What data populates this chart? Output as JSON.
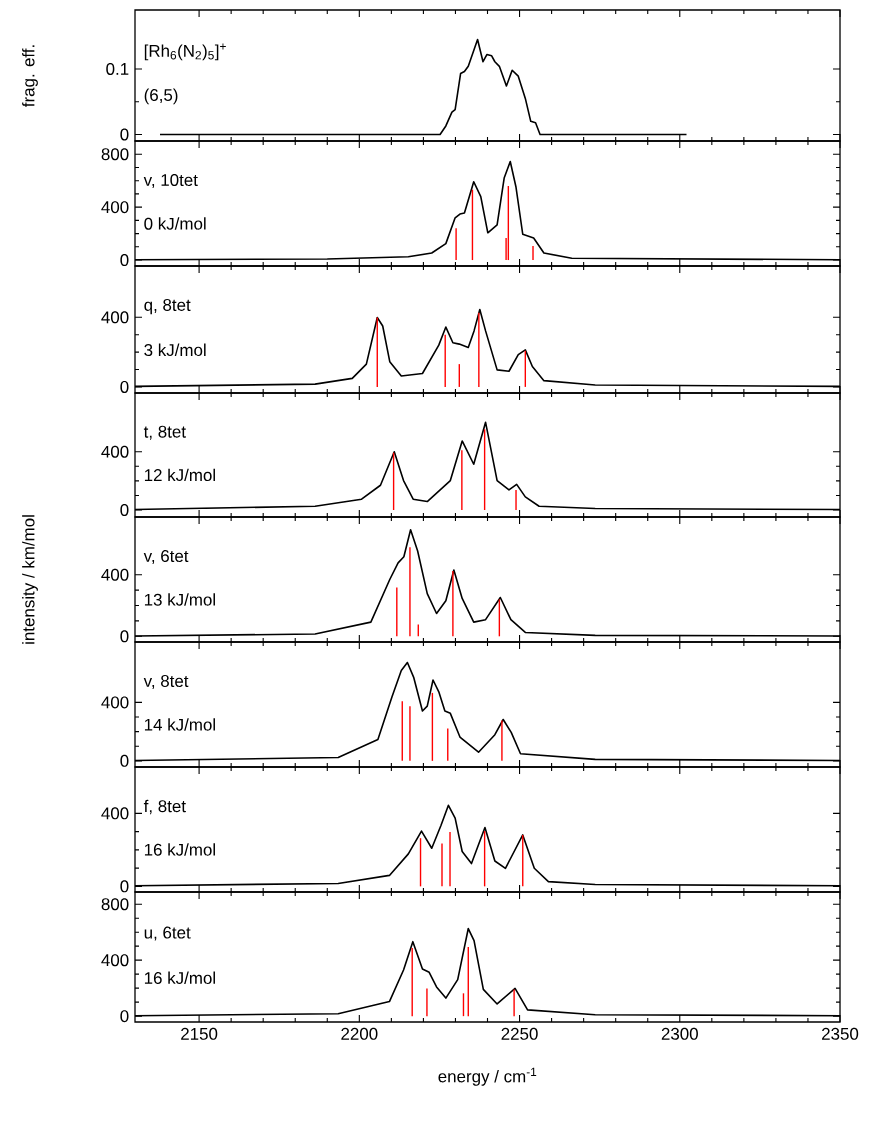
{
  "chart_data": [
    {
      "type": "line",
      "ylabel": "frag. eff.",
      "annotations": [
        "[Rh$_{6}$(N$_{2}$)$_{5}$]$^{+}$",
        "(6,5)"
      ],
      "xlim": [
        2130,
        2350
      ],
      "xticks": [
        2150,
        2200,
        2250,
        2300,
        2350
      ],
      "ylim": [
        -0.01,
        0.19
      ],
      "yticks": [
        0,
        0.1
      ],
      "tick_labels": "y",
      "series": [
        {
          "type": "line",
          "color": "#000000",
          "x": [
            2137.8,
            2222.6,
            2225.2,
            2227,
            2228.9,
            2229.9,
            2231.6,
            2232.8,
            2234,
            2236.9,
            2238.6,
            2239.8,
            2241.3,
            2242.3,
            2243.7,
            2245.9,
            2247.7,
            2249.6,
            2251.8,
            2253.5,
            2255,
            2256.4,
            2302.1
          ],
          "values": [
            0,
            0,
            0,
            0.013,
            0.034,
            0.038,
            0.093,
            0.096,
            0.104,
            0.145,
            0.111,
            0.122,
            0.12,
            0.111,
            0.104,
            0.074,
            0.098,
            0.089,
            0.055,
            0.02,
            0.018,
            0,
            0
          ]
        }
      ]
    },
    {
      "type": "line",
      "annotations": [
        "v, 10tet",
        "0 kJ/mol"
      ],
      "xlim": [
        2130,
        2350
      ],
      "xticks": [
        2150,
        2200,
        2250,
        2300,
        2350
      ],
      "ylim": [
        -45,
        900
      ],
      "yticks": [
        0,
        400,
        800
      ],
      "tick_labels": "y",
      "series": [
        {
          "type": "line",
          "color": "#000000",
          "x": [
            2130,
            2190,
            2215.3,
            2222.6,
            2227,
            2229.9,
            2231.4,
            2232.8,
            2235.7,
            2237.9,
            2240.1,
            2243,
            2245.2,
            2247.1,
            2248.9,
            2251,
            2254.4,
            2257.6,
            2266.3,
            2350
          ],
          "values": [
            2,
            8,
            25,
            53,
            124,
            319,
            348,
            355,
            592,
            479,
            206,
            266,
            620,
            745,
            550,
            195,
            167,
            53,
            14,
            2
          ]
        },
        {
          "type": "bar",
          "color": "#ff0000",
          "x": [
            2230.2,
            2235.3,
            2245.8,
            2246.5,
            2254.2
          ],
          "values": [
            241,
            532,
            167,
            560,
            106
          ]
        }
      ]
    },
    {
      "type": "line",
      "annotations": [
        "q, 8tet",
        "3 kJ/mol"
      ],
      "xlim": [
        2130,
        2350
      ],
      "xticks": [
        2150,
        2200,
        2250,
        2300,
        2350
      ],
      "ylim": [
        -35,
        695
      ],
      "yticks": [
        0,
        400
      ],
      "tick_labels": "y",
      "series": [
        {
          "type": "line",
          "color": "#000000",
          "x": [
            2130,
            2186.2,
            2197.8,
            2202.2,
            2205.6,
            2207.3,
            2209.5,
            2213.1,
            2219.7,
            2224.8,
            2227,
            2229.2,
            2231.2,
            2234,
            2235.8,
            2237.6,
            2239.4,
            2243,
            2246.7,
            2249.6,
            2251.8,
            2254,
            2257.6,
            2273.6,
            2350
          ],
          "values": [
            3,
            16,
            49,
            131,
            399,
            350,
            145,
            63,
            77,
            240,
            344,
            254,
            246,
            227,
            322,
            445,
            322,
            98,
            90,
            186,
            213,
            117,
            36,
            11,
            3
          ]
        },
        {
          "type": "bar",
          "color": "#ff0000",
          "x": [
            2205.6,
            2226.8,
            2231.2,
            2237.3,
            2251.8
          ],
          "values": [
            399,
            300,
            131,
            426,
            208
          ]
        }
      ]
    },
    {
      "type": "line",
      "annotations": [
        "t, 8tet",
        "12 kJ/mol"
      ],
      "xlim": [
        2130,
        2350
      ],
      "xticks": [
        2150,
        2200,
        2250,
        2300,
        2350
      ],
      "ylim": [
        -48,
        803
      ],
      "yticks": [
        0,
        400
      ],
      "tick_labels": "y",
      "series": [
        {
          "type": "line",
          "color": "#000000",
          "x": [
            2130,
            2186.2,
            2200.7,
            2206.6,
            2210.9,
            2213.8,
            2216.8,
            2221.2,
            2228.4,
            2232.1,
            2235.7,
            2239.4,
            2243,
            2246.7,
            2249.1,
            2251.8,
            2256.1,
            2273.6,
            2350
          ],
          "values": [
            3,
            26,
            74,
            170,
            400,
            202,
            74,
            58,
            202,
            474,
            314,
            602,
            202,
            138,
            176,
            90,
            26,
            10,
            3
          ]
        },
        {
          "type": "bar",
          "color": "#ff0000",
          "x": [
            2210.7,
            2231.4,
            2232,
            2239.1,
            2248.9
          ],
          "values": [
            394,
            null,
            410,
            554,
            138
          ]
        }
      ]
    },
    {
      "type": "line",
      "ylabel": "intensity / km/mol",
      "annotations": [
        "v, 6tet",
        "13 kJ/mol"
      ],
      "xlim": [
        2130,
        2350
      ],
      "xticks": [
        2150,
        2200,
        2250,
        2300,
        2350
      ],
      "ylim": [
        -37,
        775
      ],
      "yticks": [
        0,
        400
      ],
      "tick_labels": "y",
      "series": [
        {
          "type": "line",
          "color": "#000000",
          "x": [
            2130,
            2186.2,
            2203.6,
            2209.5,
            2212.1,
            2213.9,
            2216,
            2218.2,
            2221.2,
            2224.1,
            2227,
            2229.5,
            2232.1,
            2235.7,
            2239.4,
            2244,
            2247.3,
            2251.8,
            2273.6,
            2350
          ],
          "values": [
            2,
            15,
            92,
            369,
            477,
            517,
            692,
            554,
            277,
            148,
            231,
            431,
            246,
            92,
            108,
            252,
            108,
            25,
            6,
            2
          ]
        },
        {
          "type": "bar",
          "color": "#ff0000",
          "x": [
            2211.7,
            2215.8,
            2218.4,
            2229.2,
            2243.7
          ],
          "values": [
            317,
            578,
            77,
            425,
            240
          ]
        }
      ]
    },
    {
      "type": "line",
      "annotations": [
        "v, 8tet",
        "14 kJ/mol"
      ],
      "xlim": [
        2130,
        2350
      ],
      "xticks": [
        2150,
        2200,
        2250,
        2300,
        2350
      ],
      "ylim": [
        -42,
        813
      ],
      "yticks": [
        0,
        400
      ],
      "tick_labels": "y",
      "series": [
        {
          "type": "line",
          "color": "#000000",
          "x": [
            2130,
            2193.4,
            2205.8,
            2210.2,
            2213.1,
            2215,
            2217,
            2219.7,
            2221.2,
            2223,
            2224.8,
            2226.7,
            2228.4,
            2231.4,
            2237.2,
            2242.3,
            2244.9,
            2247.4,
            2250.3,
            2273.6,
            2350
          ],
          "values": [
            3,
            23,
            146,
            439,
            618,
            673,
            569,
            341,
            374,
            553,
            472,
            341,
            325,
            163,
            59,
            179,
            283,
            195,
            49,
            10,
            3
          ]
        },
        {
          "type": "bar",
          "color": "#ff0000",
          "x": [
            2213.4,
            2215.8,
            2222.8,
            2227.6,
            2244.5
          ],
          "values": [
            407,
            374,
            465,
            221,
            276
          ]
        }
      ]
    },
    {
      "type": "line",
      "annotations": [
        "f, 8tet",
        "16 kJ/mol"
      ],
      "xlim": [
        2130,
        2350
      ],
      "xticks": [
        2150,
        2200,
        2250,
        2300,
        2350
      ],
      "ylim": [
        -31,
        654
      ],
      "yticks": [
        0,
        400
      ],
      "tick_labels": "y",
      "series": [
        {
          "type": "line",
          "color": "#000000",
          "x": [
            2130,
            2193.4,
            2209.4,
            2215.3,
            2219.4,
            2222.6,
            2225.5,
            2227.8,
            2229.9,
            2232.1,
            2235,
            2239.2,
            2242.3,
            2245.6,
            2251,
            2254.6,
            2259,
            2273.6,
            2350
          ],
          "values": [
            3,
            16,
            60,
            178,
            303,
            209,
            335,
            444,
            374,
            191,
            125,
            322,
            139,
            99,
            282,
            99,
            26,
            10,
            3
          ]
        },
        {
          "type": "bar",
          "color": "#ff0000",
          "x": [
            2219.1,
            2225.8,
            2228.3,
            2239.1,
            2251
          ],
          "values": [
            264,
            235,
            298,
            303,
            282
          ]
        }
      ]
    },
    {
      "type": "line",
      "xlabel": "energy / cm$^{-1}$",
      "annotations": [
        "u, 6tet",
        "16 kJ/mol"
      ],
      "xlim": [
        2130,
        2350
      ],
      "xticks": [
        2150,
        2200,
        2250,
        2300,
        2350
      ],
      "ylim": [
        -42,
        887
      ],
      "yticks": [
        0,
        400,
        800
      ],
      "series": [
        {
          "type": "line",
          "color": "#000000",
          "x": [
            2130,
            2193.4,
            2209.4,
            2213.8,
            2216.7,
            2219.7,
            2221.8,
            2224.1,
            2227,
            2230.7,
            2234,
            2235.8,
            2238.7,
            2243,
            2248.6,
            2252.5,
            2273.6,
            2350
          ],
          "values": [
            3,
            17,
            104,
            330,
            532,
            337,
            313,
            209,
            129,
            261,
            626,
            539,
            191,
            87,
            198,
            45,
            10,
            3
          ]
        },
        {
          "type": "bar",
          "color": "#ff0000",
          "x": [
            2216.5,
            2221.1,
            2232.5,
            2234,
            2248.3
          ],
          "values": [
            487,
            198,
            163,
            494,
            191
          ]
        }
      ]
    }
  ]
}
